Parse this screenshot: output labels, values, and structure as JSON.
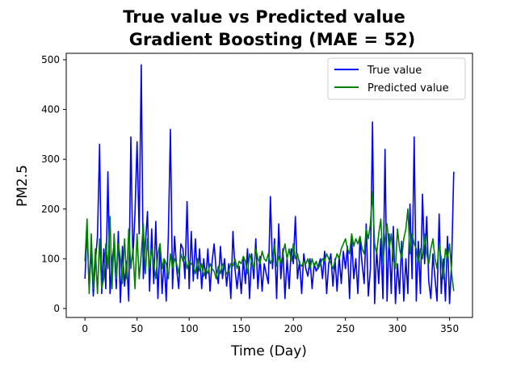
{
  "chart_data": {
    "type": "line",
    "title": [
      "True value vs Predicted value",
      "Gradient Boosting (MAE = 52)"
    ],
    "xlabel": "Time (Day)",
    "ylabel": "PM2.5",
    "xlim": [
      -18,
      372
    ],
    "ylim": [
      -18,
      513
    ],
    "x_ticks": [
      0,
      50,
      100,
      150,
      200,
      250,
      300,
      350
    ],
    "y_ticks": [
      0,
      100,
      200,
      300,
      400,
      500
    ],
    "grid": false,
    "legend_position": "top-right",
    "series": [
      {
        "name": "True value",
        "color": "#0000ff",
        "x": [
          0,
          2,
          4,
          6,
          8,
          10,
          12,
          14,
          16,
          18,
          20,
          22,
          24,
          26,
          28,
          30,
          32,
          34,
          36,
          38,
          40,
          42,
          44,
          46,
          48,
          50,
          52,
          54,
          56,
          58,
          60,
          62,
          64,
          66,
          68,
          70,
          72,
          74,
          76,
          78,
          80,
          82,
          84,
          86,
          88,
          90,
          92,
          94,
          96,
          98,
          100,
          102,
          104,
          106,
          108,
          110,
          112,
          114,
          116,
          118,
          120,
          122,
          124,
          126,
          128,
          130,
          132,
          134,
          136,
          138,
          140,
          142,
          144,
          146,
          148,
          150,
          152,
          154,
          156,
          158,
          160,
          162,
          164,
          166,
          168,
          170,
          172,
          174,
          176,
          178,
          180,
          182,
          184,
          186,
          188,
          190,
          192,
          194,
          196,
          198,
          200,
          202,
          204,
          206,
          208,
          210,
          212,
          214,
          216,
          218,
          220,
          222,
          224,
          226,
          228,
          230,
          232,
          234,
          236,
          238,
          240,
          242,
          244,
          246,
          248,
          250,
          252,
          254,
          256,
          258,
          260,
          262,
          264,
          266,
          268,
          270,
          272,
          274,
          276,
          278,
          280,
          282,
          284,
          286,
          288,
          290,
          292,
          294,
          296,
          298,
          300,
          302,
          304,
          306,
          308,
          310,
          312,
          314,
          316,
          318,
          320,
          322,
          324,
          326,
          328,
          330,
          332,
          334,
          336,
          338,
          340,
          342,
          344,
          346,
          348,
          350,
          352,
          354
        ],
        "y": [
          60,
          160,
          40,
          120,
          25,
          95,
          145,
          330,
          30,
          120,
          40,
          275,
          30,
          95,
          130,
          40,
          155,
          12,
          125,
          45,
          95,
          15,
          345,
          100,
          190,
          335,
          150,
          490,
          60,
          130,
          195,
          35,
          160,
          50,
          175,
          20,
          130,
          30,
          100,
          15,
          145,
          360,
          40,
          145,
          80,
          40,
          130,
          120,
          60,
          215,
          40,
          155,
          55,
          140,
          60,
          120,
          40,
          100,
          60,
          120,
          35,
          95,
          130,
          75,
          50,
          125,
          60,
          100,
          45,
          90,
          20,
          155,
          80,
          40,
          85,
          30,
          100,
          50,
          120,
          20,
          110,
          60,
          140,
          40,
          105,
          35,
          90,
          70,
          50,
          225,
          80,
          140,
          20,
          170,
          60,
          120,
          20,
          100,
          40,
          120,
          90,
          185,
          60,
          95,
          30,
          110,
          80,
          65,
          100,
          40,
          90,
          75,
          85,
          100,
          60,
          115,
          30,
          90,
          110,
          45,
          100,
          35,
          105,
          50,
          115,
          80,
          125,
          20,
          140,
          60,
          100,
          30,
          140,
          90,
          50,
          170,
          25,
          80,
          375,
          10,
          120,
          50,
          140,
          20,
          320,
          15,
          150,
          30,
          165,
          10,
          90,
          30,
          135,
          15,
          100,
          30,
          210,
          60,
          345,
          15,
          135,
          30,
          230,
          90,
          185,
          55,
          20,
          110,
          60,
          15,
          190,
          30,
          100,
          15,
          145,
          10,
          95,
          275
        ]
      },
      {
        "name": "Predicted value",
        "color": "#008000",
        "x": [
          0,
          2,
          4,
          6,
          8,
          10,
          12,
          14,
          16,
          18,
          20,
          22,
          24,
          26,
          28,
          30,
          32,
          34,
          36,
          38,
          40,
          42,
          44,
          46,
          48,
          50,
          52,
          54,
          56,
          58,
          60,
          62,
          64,
          66,
          68,
          70,
          72,
          74,
          76,
          78,
          80,
          82,
          84,
          86,
          88,
          90,
          92,
          94,
          96,
          98,
          100,
          102,
          104,
          106,
          108,
          110,
          112,
          114,
          116,
          118,
          120,
          122,
          124,
          126,
          128,
          130,
          132,
          134,
          136,
          138,
          140,
          142,
          144,
          146,
          148,
          150,
          152,
          154,
          156,
          158,
          160,
          162,
          164,
          166,
          168,
          170,
          172,
          174,
          176,
          178,
          180,
          182,
          184,
          186,
          188,
          190,
          192,
          194,
          196,
          198,
          200,
          202,
          204,
          206,
          208,
          210,
          212,
          214,
          216,
          218,
          220,
          222,
          224,
          226,
          228,
          230,
          232,
          234,
          236,
          238,
          240,
          242,
          244,
          246,
          248,
          250,
          252,
          254,
          256,
          258,
          260,
          262,
          264,
          266,
          268,
          270,
          272,
          274,
          276,
          278,
          280,
          282,
          284,
          286,
          288,
          290,
          292,
          294,
          296,
          298,
          300,
          302,
          304,
          306,
          308,
          310,
          312,
          314,
          316,
          318,
          320,
          322,
          324,
          326,
          328,
          330,
          332,
          334,
          336,
          338,
          340,
          342,
          344,
          346,
          348,
          350,
          352,
          354
        ],
        "y": [
          95,
          180,
          30,
          150,
          40,
          120,
          30,
          140,
          40,
          60,
          130,
          80,
          185,
          40,
          150,
          60,
          130,
          100,
          50,
          140,
          60,
          160,
          80,
          120,
          40,
          150,
          60,
          110,
          170,
          70,
          140,
          80,
          120,
          90,
          60,
          110,
          130,
          80,
          100,
          90,
          60,
          110,
          80,
          100,
          90,
          70,
          110,
          95,
          105,
          80,
          95,
          90,
          85,
          70,
          100,
          75,
          90,
          65,
          80,
          70,
          90,
          80,
          75,
          60,
          85,
          70,
          90,
          80,
          70,
          75,
          90,
          85,
          100,
          80,
          95,
          90,
          105,
          95,
          70,
          110,
          95,
          80,
          120,
          100,
          90,
          115,
          100,
          95,
          110,
          90,
          100,
          130,
          85,
          105,
          90,
          110,
          130,
          100,
          120,
          95,
          130,
          100,
          110,
          90,
          85,
          95,
          90,
          100,
          80,
          100,
          85,
          95,
          80,
          90,
          100,
          95,
          110,
          100,
          90,
          80,
          95,
          110,
          100,
          120,
          130,
          140,
          120,
          110,
          150,
          125,
          140,
          130,
          145,
          120,
          110,
          160,
          140,
          170,
          235,
          130,
          110,
          150,
          180,
          90,
          140,
          170,
          120,
          150,
          100,
          80,
          160,
          120,
          100,
          140,
          160,
          200,
          110,
          150,
          130,
          120,
          90,
          120,
          100,
          150,
          110,
          90,
          120,
          140,
          100,
          80,
          130,
          100,
          60,
          120,
          100,
          130,
          70,
          35
        ]
      }
    ]
  }
}
